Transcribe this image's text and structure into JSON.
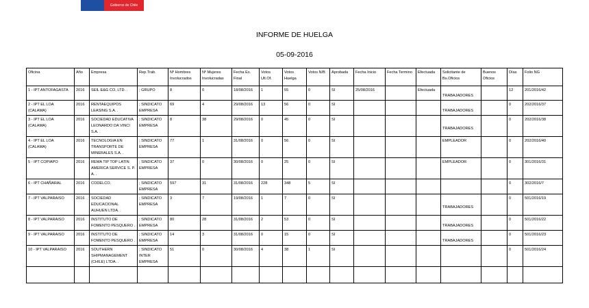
{
  "logo": {
    "text": "Gobierno de Chile",
    "colors": [
      "#1f4fa3",
      "#e0272e"
    ]
  },
  "title": "INFORME DE HUELGA",
  "date": "05-09-2016",
  "columns": [
    "Oficina",
    "Año",
    "Empresa",
    "Rep.Trab.",
    "Nº Hombres Involucrados",
    "Nº Mujeres Involucradas",
    "Fecha Ex. Final",
    "Votos Ult.Of.",
    "Votos Huelga",
    "Votos N/B",
    "Aprobada",
    "Fecha Inicio",
    "Fecha Termino",
    "Efectuada",
    "Solicitante de Bs.Oficios",
    "Buenos Oficios",
    "Días",
    "Folio NG"
  ],
  "rows": [
    [
      "1 - IPT ANTOFAGASTA",
      "2016",
      "SEIL E&G CO, LTD. .",
      "; GRUPO",
      "8",
      "0",
      "18/08/2016",
      "1",
      "55",
      "0",
      "SI",
      "25/08/2016",
      "",
      "Efectuada",
      "TRABAJADORES",
      "",
      "12",
      "201/2016/42"
    ],
    [
      "2 - IPT EL LOA (CALAMA)",
      "2016",
      "RENTAEQUIPOS LEASING S.A. .",
      "; SINDICATO EMPRESA",
      "69",
      "4",
      "29/08/2016",
      "13",
      "56",
      "0",
      "SI",
      "",
      "",
      "",
      "TRABAJADORES",
      "",
      "0",
      "202/2016/37"
    ],
    [
      "3 - IPT EL LOA (CALAMA)",
      "2016",
      "SOCIEDAD EDUCATIVA LEONARDO DA VINCI S.A. .",
      "; SINDICATO EMPRESA",
      "8",
      "38",
      "29/08/2016",
      "0",
      "45",
      "0",
      "SI",
      "",
      "",
      "",
      "TRABAJADORES",
      "",
      "0",
      "202/2016/38"
    ],
    [
      "4 - IPT EL LOA (CALAMA)",
      "2016",
      "TECNOLOGIA EN TRANSPORTE DE MINERALES S.A. .",
      "; SINDICATO EMPRESA",
      "77",
      "1",
      "31/08/2016",
      "0",
      "56",
      "0",
      "SI",
      "",
      "",
      "",
      "EMPLEADOR",
      "",
      "0",
      "202/2016/40"
    ],
    [
      "5 - IPT COPIAPO",
      "2016",
      "REMA TIP TOP LATIN AMERICA SERVICE S. P. A. .",
      "; SINDICATO EMPRESA",
      "37",
      "0",
      "30/08/2016",
      "0",
      "25",
      "0",
      "SI",
      "",
      "",
      "",
      "EMPLEADOR",
      "",
      "0",
      "301/2016/31"
    ],
    [
      "6 - IPT CHAÑARAL",
      "2016",
      "CODELCO.",
      "; SINDICATO EMPRESA",
      "597",
      "31",
      "31/08/2016",
      "228",
      "348",
      "5",
      "SI",
      "",
      "",
      "",
      "",
      "",
      "0",
      "302/2016/7"
    ],
    [
      "7 - IPT VALPARAISO",
      "2016",
      "SOCIEDAD EDUCACIONAL AUHUEN LTDA. .",
      "; SINDICATO EMPRESA",
      "3",
      "7",
      "19/08/2016",
      "1",
      "7",
      "0",
      "SI",
      "",
      "",
      "",
      "TRABAJADORES",
      "",
      "0",
      "501/2016/19"
    ],
    [
      "8 - IPT VALPARAISO",
      "2016",
      "INSTITUTO DE FOMENTO PESQUERO .",
      "; SINDICATO EMPRESA",
      "80",
      "28",
      "31/08/2016",
      "2",
      "53",
      "0",
      "SI",
      "",
      "",
      "",
      "TRABAJADORES",
      "",
      "0",
      "501/2016/22"
    ],
    [
      "9 - IPT VALPARAISO",
      "2016",
      "INSTITUTO DE FOMENTO PESQUERO .",
      "; SINDICATO EMPRESA",
      "14",
      "3",
      "31/08/2016",
      "0",
      "15",
      "0",
      "SI",
      "",
      "",
      "",
      "TRABAJADORES",
      "",
      "0",
      "501/2016/23"
    ],
    [
      "10 - IPT VALPARAISO",
      "2016",
      "SOUTHERN SHIPMANAGEMENT (CHILE) LTDA. .",
      "; SINDICATO INTER EMPRESA",
      "51",
      "0",
      "30/08/2016",
      "4",
      "38",
      "1",
      "SI",
      "",
      "",
      "",
      "",
      "",
      "0",
      "501/2016/24"
    ]
  ]
}
